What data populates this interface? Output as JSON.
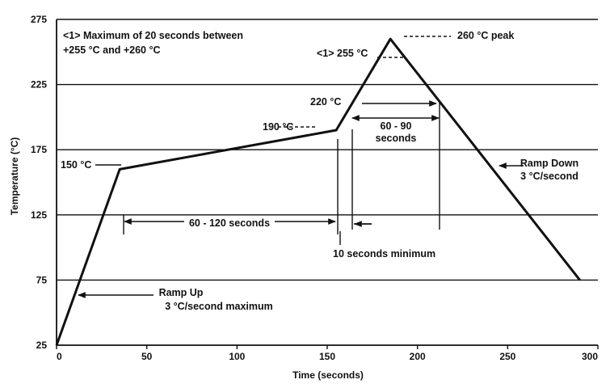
{
  "chart_data": {
    "type": "line",
    "xlabel": "Time (seconds)",
    "ylabel": "Temperature (°C)",
    "xlim": [
      0,
      300
    ],
    "ylim": [
      25,
      275
    ],
    "x_ticks": [
      "0",
      "50",
      "100",
      "150",
      "200",
      "250",
      "300"
    ],
    "y_ticks": [
      "25",
      "75",
      "125",
      "175",
      "225",
      "275"
    ],
    "grid": "horizontal",
    "series": [
      {
        "x": [
          0,
          35,
          155,
          185,
          290
        ],
        "y": [
          25,
          160,
          190,
          260,
          75
        ]
      }
    ],
    "annotations": {
      "note1_line1": "<1> Maximum of 20 seconds between",
      "note1_line2": "+255 °C and +260 °C",
      "peak": "260 °C peak",
      "t255": "<1> 255 °C",
      "t220": "220 °C",
      "t190": "190 °C",
      "t150": "150 °C",
      "dur60_90_a": "60 - 90",
      "dur60_90_b": "seconds",
      "dur60_120": "60 - 120 seconds",
      "ten_sec": "10 seconds minimum",
      "rampdown_a": "Ramp Down",
      "rampdown_b": "3 °C/second",
      "rampup_a": "Ramp Up",
      "rampup_b": "3 °C/second maximum"
    },
    "colors": {
      "line": "#111111",
      "grid": "#111111"
    }
  }
}
